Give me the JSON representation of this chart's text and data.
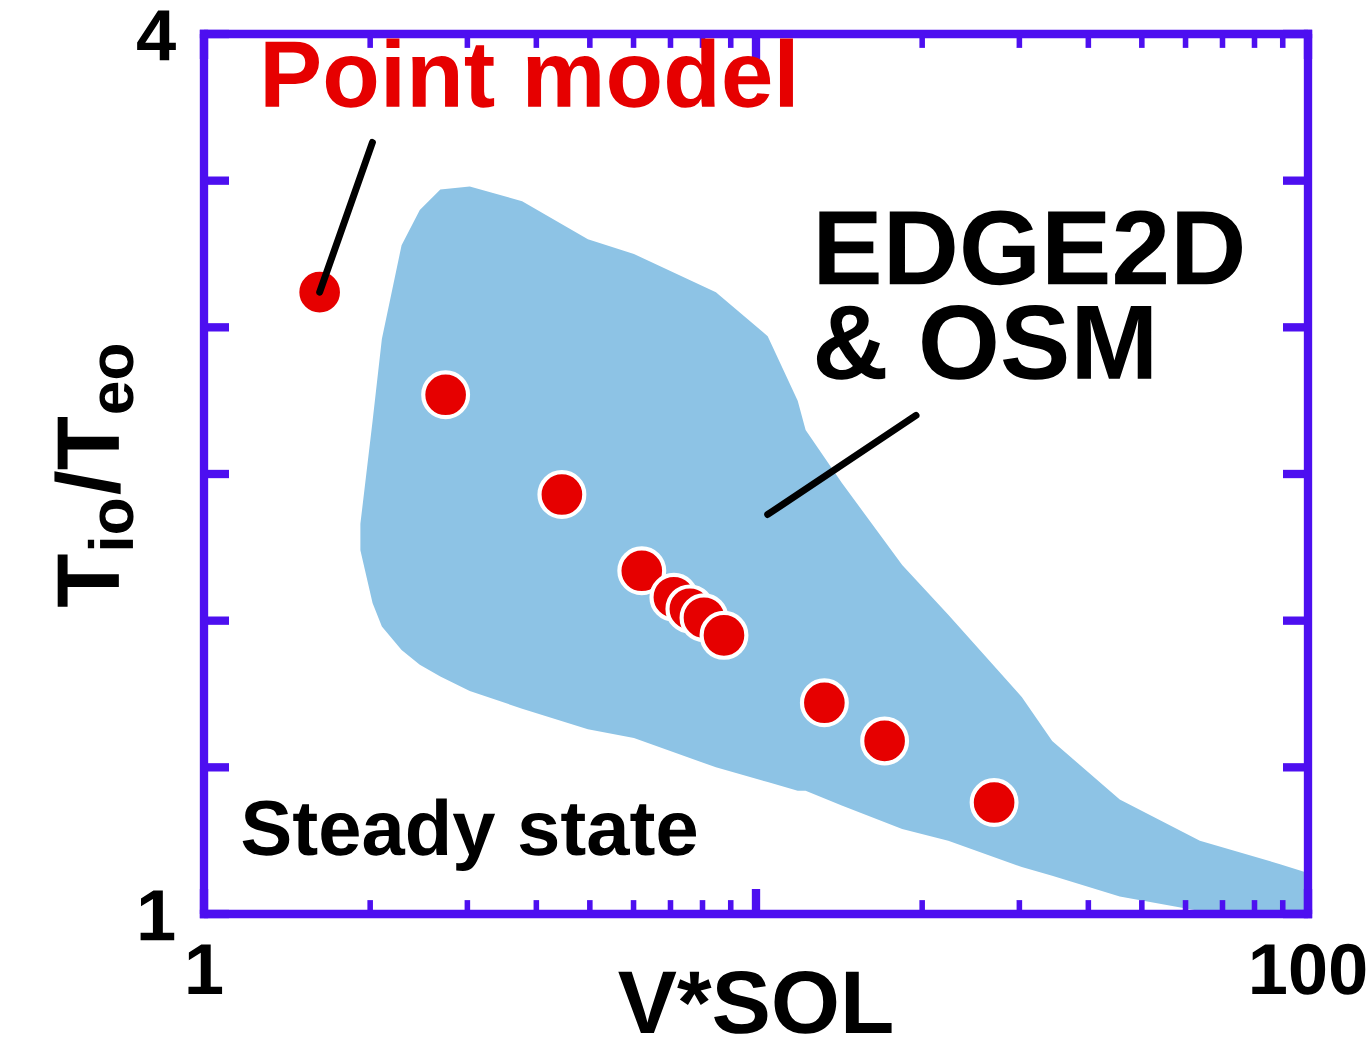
{
  "chart_data": {
    "type": "scatter",
    "xlabel": "V*SOL",
    "ylabel": "T$_{io}$/T$_{eo}$",
    "annotations": [
      "Steady state"
    ],
    "log": "x",
    "xlim": [
      1,
      100
    ],
    "ylim": [
      1,
      4
    ],
    "xticks": [
      1,
      {
        "value": 10,
        "label": null
      },
      100
    ],
    "yticks": [
      1,
      {
        "value": 1.5,
        "label": null
      },
      {
        "value": 2,
        "label": null
      },
      {
        "value": 2.5,
        "label": null
      },
      {
        "value": 3,
        "label": null
      },
      {
        "value": 3.5,
        "label": null
      },
      4
    ],
    "series": [
      {
        "name": "EDGE2D\n& OSM",
        "type": "area",
        "color": "#8dc3e5",
        "x": [
          1.92,
          2.02,
          2.1,
          2.28,
          2.46,
          2.68,
          3.03,
          3.77,
          4.96,
          6.01,
          8.46,
          10.5,
          11.9,
          12.3,
          14.3,
          18.4,
          22.3,
          30.3,
          34.4,
          45.6,
          63.7,
          89,
          100,
          100,
          89,
          63.7,
          45.6,
          34.4,
          30.3,
          22.3,
          18.4,
          14.3,
          12.3,
          11.9,
          10.5,
          8.46,
          6.01,
          4.96,
          3.77,
          3.03,
          2.68,
          2.46,
          2.28,
          2.1,
          2.02,
          1.92
        ],
        "values": [
          2.33,
          2.68,
          2.96,
          3.28,
          3.4,
          3.47,
          3.48,
          3.43,
          3.3,
          3.25,
          3.12,
          2.97,
          2.75,
          2.65,
          2.47,
          2.19,
          2.02,
          1.74,
          1.59,
          1.39,
          1.25,
          1.17,
          1.14,
          1.0,
          1.0,
          1.01,
          1.06,
          1.13,
          1.16,
          1.25,
          1.29,
          1.37,
          1.42,
          1.42,
          1.45,
          1.5,
          1.6,
          1.63,
          1.7,
          1.76,
          1.81,
          1.85,
          1.9,
          1.98,
          2.06,
          2.24
        ]
      },
      {
        "name": "Point model",
        "color": "#e60000",
        "marker": "circle",
        "x": [
          1.62,
          2.74,
          4.45,
          6.21,
          7.1,
          7.59,
          8.05,
          8.75,
          13.3,
          17.1,
          27.0
        ],
        "values": [
          3.12,
          2.77,
          2.43,
          2.17,
          2.08,
          2.04,
          2.01,
          1.95,
          1.72,
          1.59,
          1.38
        ]
      }
    ]
  }
}
